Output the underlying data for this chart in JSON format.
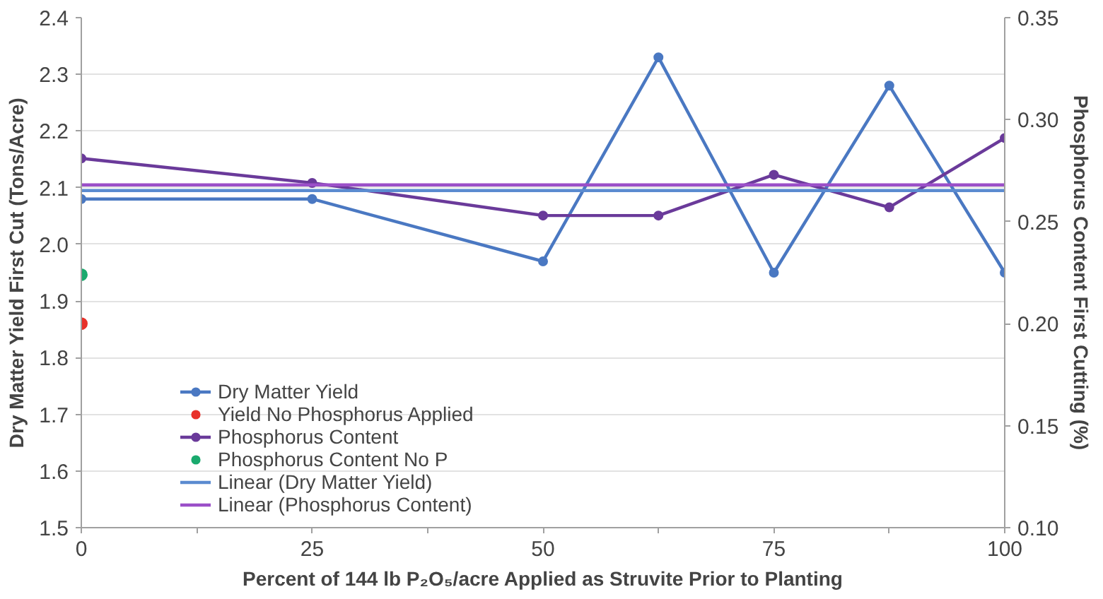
{
  "chart_data": {
    "type": "line",
    "xlabel": "Percent of 144 lb P₂O₅/acre Applied as Struvite Prior to Planting",
    "ylabel": "Dry Matter Yield First Cut (Tons/Acre)",
    "y2label": "Phosphorus Content First Cutting (%)",
    "xlim": [
      0,
      100
    ],
    "xticks": [
      0,
      25,
      50,
      75,
      100
    ],
    "ylim": [
      1.5,
      2.4
    ],
    "yticks": [
      {
        "value": 1.5,
        "label": "1.5"
      },
      {
        "value": 1.6,
        "label": "1.6"
      },
      {
        "value": 1.7,
        "label": "1.7"
      },
      {
        "value": 1.8,
        "label": "1.8"
      },
      {
        "value": 1.9,
        "label": "1.9"
      },
      {
        "value": 2.0,
        "label": "2.0"
      },
      {
        "value": 2.1,
        "label": "2.1"
      },
      {
        "value": 2.2,
        "label": "2.2"
      },
      {
        "value": 2.3,
        "label": "2.3"
      },
      {
        "value": 2.4,
        "label": "2.4"
      }
    ],
    "y2lim": [
      0.1,
      0.35
    ],
    "y2ticks": [
      {
        "value": 0.1,
        "label": "0.10"
      },
      {
        "value": 0.15,
        "label": "0.15"
      },
      {
        "value": 0.2,
        "label": "0.20"
      },
      {
        "value": 0.25,
        "label": "0.25"
      },
      {
        "value": 0.3,
        "label": "0.30"
      },
      {
        "value": 0.35,
        "label": "0.35"
      }
    ],
    "grid": "y",
    "legend": "bottom left",
    "marker": "circle",
    "series": [
      {
        "name": "Dry Matter Yield",
        "color": "#4a78c2",
        "x": [
          0,
          25,
          50,
          62.5,
          75,
          87.5,
          100
        ],
        "values": [
          2.08,
          2.08,
          1.97,
          2.33,
          1.95,
          2.28,
          1.95
        ]
      },
      {
        "name": "Yield No Phosphorus Applied",
        "type": "scatter",
        "color": "#e8312a",
        "x": [
          0
        ],
        "values": [
          1.86
        ]
      },
      {
        "name": "Phosphorus Content",
        "color": "#6a3a9a",
        "axis": "y2",
        "x": [
          0,
          25,
          50,
          62.5,
          75,
          87.5,
          100
        ],
        "values": [
          0.281,
          0.269,
          0.253,
          0.253,
          0.273,
          0.257,
          0.291
        ]
      },
      {
        "name": "Phosphorus Content No P",
        "type": "scatter",
        "color": "#1aaa6e",
        "axis": "y2",
        "x": [
          0
        ],
        "values": [
          0.224
        ]
      },
      {
        "name": "Linear (Dry Matter Yield)",
        "color": "#5b8bd0",
        "marker": "none",
        "x": [
          0,
          100
        ],
        "values": [
          2.095,
          2.095
        ]
      },
      {
        "name": "Linear (Phosphorus Content)",
        "color": "#9b4fc8",
        "marker": "none",
        "axis": "y2",
        "x": [
          0,
          100
        ],
        "values": [
          0.268,
          0.268
        ]
      }
    ]
  }
}
